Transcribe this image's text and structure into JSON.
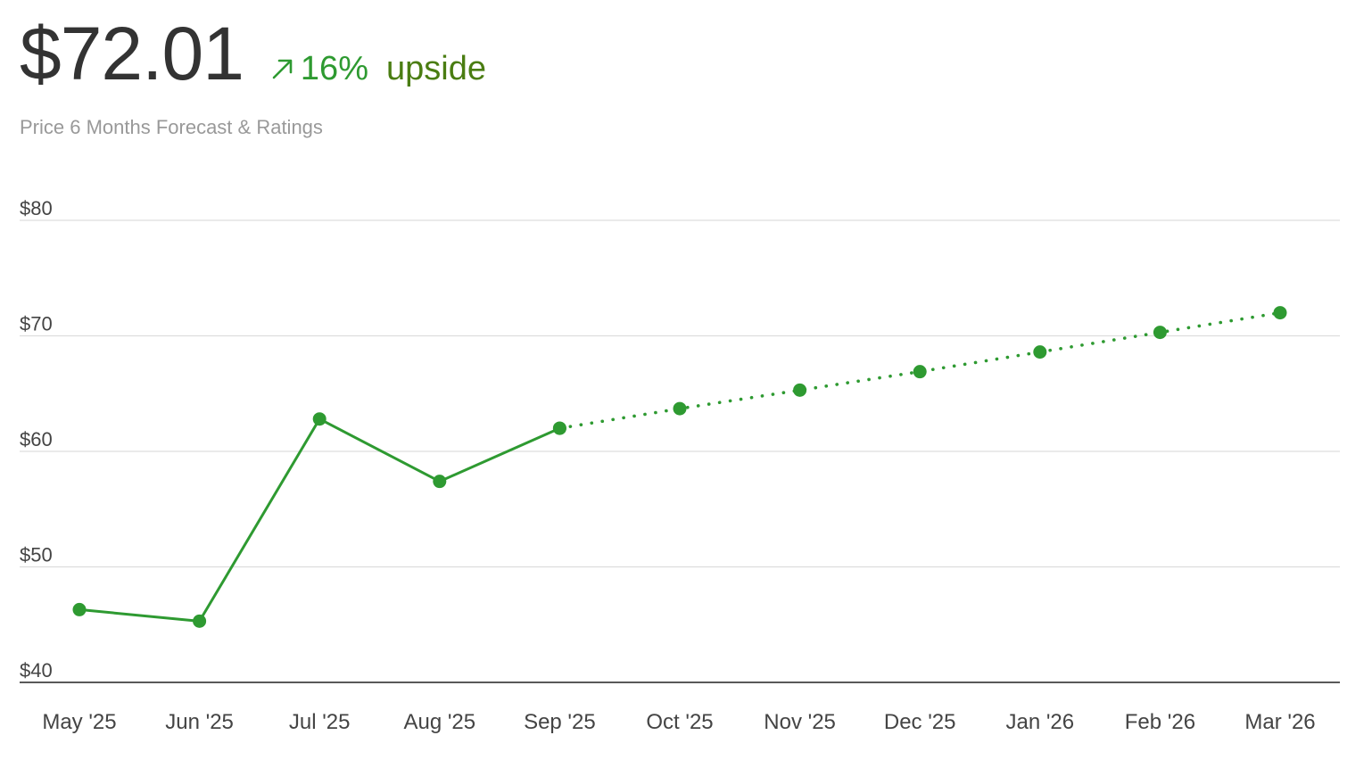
{
  "header": {
    "price": "$72.01",
    "change_pct": "16%",
    "change_label": "upside",
    "subtitle": "Price 6 Months Forecast & Ratings"
  },
  "colors": {
    "accent": "#2e9a31",
    "upside_text": "#4a7d12",
    "price_text": "#333333",
    "muted_text": "#999999",
    "grid": "#dddddd",
    "axis": "#222222"
  },
  "icons": {
    "change_direction": "arrow-up-right-icon"
  },
  "chart_data": {
    "type": "line",
    "categories": [
      "May '25",
      "Jun '25",
      "Jul '25",
      "Aug '25",
      "Sep '25",
      "Oct '25",
      "Nov '25",
      "Dec '25",
      "Jan '26",
      "Feb '26",
      "Mar '26"
    ],
    "series": [
      {
        "style": "solid",
        "values": [
          46.3,
          45.3,
          62.8,
          57.4,
          62.0,
          null,
          null,
          null,
          null,
          null,
          null
        ]
      },
      {
        "style": "dotted",
        "values": [
          null,
          null,
          null,
          null,
          62.0,
          63.7,
          65.3,
          66.9,
          68.6,
          70.3,
          72.0
        ]
      }
    ],
    "ylim": [
      40,
      80
    ],
    "yticks": [
      40,
      50,
      60,
      70,
      80
    ],
    "ytick_labels": [
      "$40",
      "$50",
      "$60",
      "$70",
      "$80"
    ],
    "grid": true
  }
}
